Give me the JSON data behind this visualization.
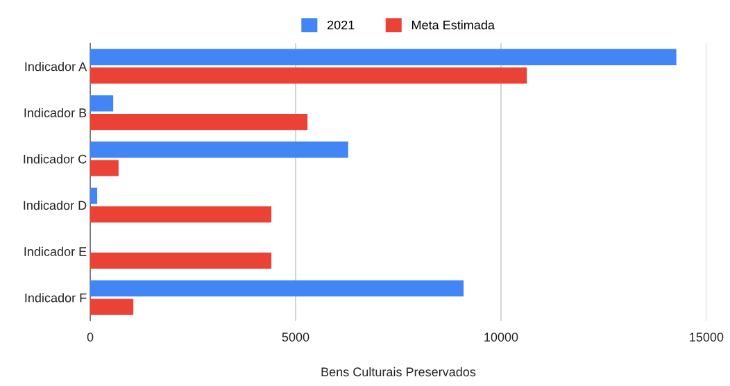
{
  "chart_data": {
    "type": "bar",
    "orientation": "horizontal",
    "xlabel": "Bens Culturais Preservados",
    "categories": [
      "Indicador A",
      "Indicador B",
      "Indicador C",
      "Indicador D",
      "Indicador E",
      "Indicador F"
    ],
    "series": [
      {
        "name": "2021",
        "color": "#4285f4",
        "values": [
          14270,
          560,
          6280,
          170,
          null,
          9090
        ]
      },
      {
        "name": "Meta Estimada",
        "color": "#ea4335",
        "values": [
          10630,
          5290,
          690,
          4410,
          4410,
          1050
        ]
      }
    ],
    "xlim": [
      0,
      15000
    ],
    "xticks": [
      0,
      5000,
      10000,
      15000
    ],
    "grid": "x",
    "legend": "top"
  }
}
